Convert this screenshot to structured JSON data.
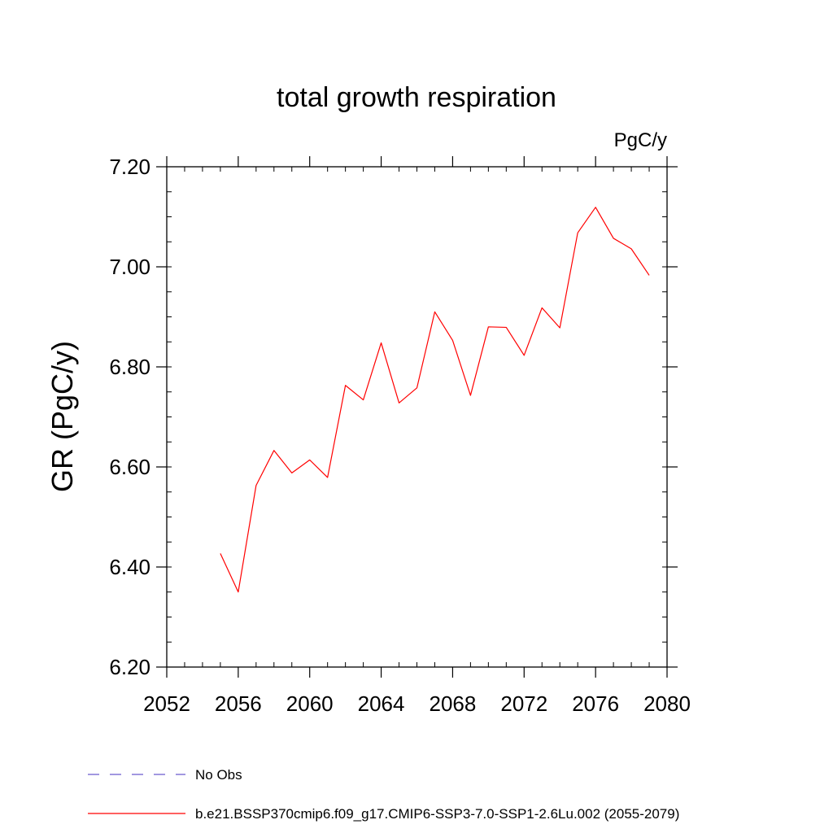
{
  "chart_data": {
    "type": "line",
    "title": "total growth respiration",
    "units_label": "PgC/y",
    "xlabel": "",
    "ylabel": "GR  (PgC/y)",
    "xlim": [
      2052,
      2080
    ],
    "ylim": [
      6.2,
      7.2
    ],
    "x_ticks": [
      2052,
      2056,
      2060,
      2064,
      2068,
      2072,
      2076,
      2080
    ],
    "x_tick_labels": [
      "2052",
      "2056",
      "2060",
      "2064",
      "2068",
      "2072",
      "2076",
      "2080"
    ],
    "y_ticks": [
      6.2,
      6.4,
      6.6,
      6.8,
      7.0,
      7.2
    ],
    "y_tick_labels": [
      "6.20",
      "6.40",
      "6.60",
      "6.80",
      "7.00",
      "7.20"
    ],
    "y_minor_step": 0.05,
    "x_minor_step": 1,
    "series": [
      {
        "name": "b.e21.BSSP370cmip6.f09_g17.CMIP6-SSP3-7.0-SSP1-2.6Lu.002 (2055-2079)",
        "color": "#ff0000",
        "x": [
          2055,
          2056,
          2057,
          2058,
          2059,
          2060,
          2061,
          2062,
          2063,
          2064,
          2065,
          2066,
          2067,
          2068,
          2069,
          2070,
          2071,
          2072,
          2073,
          2074,
          2075,
          2076,
          2077,
          2078,
          2079
        ],
        "values": [
          6.427,
          6.35,
          6.563,
          6.633,
          6.588,
          6.614,
          6.579,
          6.763,
          6.734,
          6.848,
          6.728,
          6.758,
          6.91,
          6.853,
          6.743,
          6.88,
          6.879,
          6.823,
          6.918,
          6.878,
          7.068,
          7.119,
          7.057,
          7.036,
          6.983
        ]
      }
    ],
    "legend": [
      {
        "label": "No Obs",
        "color": "#6a5acd",
        "style": "dashed"
      },
      {
        "label": "b.e21.BSSP370cmip6.f09_g17.CMIP6-SSP3-7.0-SSP1-2.6Lu.002 (2055-2079)",
        "color": "#ff0000",
        "style": "solid"
      }
    ]
  }
}
